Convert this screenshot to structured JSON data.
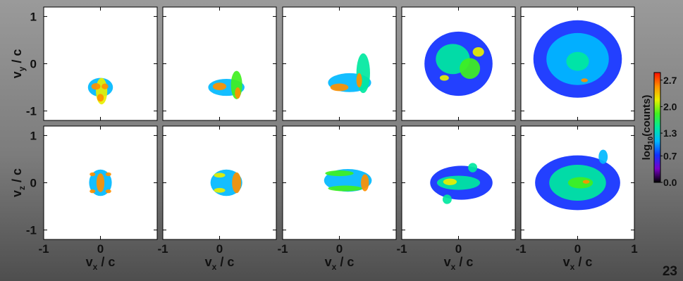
{
  "chart_data": {
    "type": "heatmap",
    "layout": {
      "rows": 2,
      "columns": 5
    },
    "rows": [
      {
        "ylabel_base": "v",
        "ylabel_sub": "y",
        "ylabel_tail": " / c",
        "yticks": [
          "1",
          "0",
          "-1"
        ],
        "ylim": [
          -1.2,
          1.2
        ]
      },
      {
        "ylabel_base": "v",
        "ylabel_sub": "z",
        "ylabel_tail": " / c",
        "yticks": [
          "1",
          "0",
          "-1"
        ],
        "ylim": [
          -1.2,
          1.2
        ]
      }
    ],
    "x_axis": {
      "label_base": "v",
      "label_sub": "x",
      "label_tail": " / c",
      "ticks": [
        "-1",
        "0",
        "1"
      ],
      "xlim": [
        -1,
        1
      ]
    },
    "colorbar": {
      "label_prefix": "log",
      "label_sub": "10",
      "label_suffix": "(counts)",
      "ticks": [
        "2.7",
        "2.0",
        "1.3",
        "0.7",
        "0.0"
      ],
      "tick_values": [
        2.7,
        2.0,
        1.3,
        0.7,
        0.0
      ],
      "range": [
        0.0,
        2.9
      ],
      "colors": [
        "#000000",
        "#7a00c8",
        "#1030ff",
        "#00b8ff",
        "#00e8a0",
        "#40f020",
        "#e8f000",
        "#ff9000",
        "#ff1000"
      ]
    },
    "panels": [
      {
        "row": 0,
        "col": 0,
        "blobs": [
          {
            "cx": 0.0,
            "cy": -0.5,
            "rx": 0.22,
            "ry": 0.2,
            "level": 1.2
          },
          {
            "cx": 0.02,
            "cy": -0.58,
            "rx": 0.1,
            "ry": 0.28,
            "level": 2.0
          },
          {
            "cx": -0.08,
            "cy": -0.48,
            "rx": 0.08,
            "ry": 0.07,
            "level": 2.6
          },
          {
            "cx": 0.08,
            "cy": -0.48,
            "rx": 0.06,
            "ry": 0.06,
            "level": 2.5
          },
          {
            "cx": 0.0,
            "cy": -0.72,
            "rx": 0.06,
            "ry": 0.08,
            "level": 2.7
          }
        ]
      },
      {
        "row": 0,
        "col": 1,
        "blobs": [
          {
            "cx": 0.12,
            "cy": -0.5,
            "rx": 0.32,
            "ry": 0.18,
            "level": 1.1
          },
          {
            "cx": 0.3,
            "cy": -0.45,
            "rx": 0.1,
            "ry": 0.3,
            "level": 1.7
          },
          {
            "cx": 0.0,
            "cy": -0.48,
            "rx": 0.12,
            "ry": 0.08,
            "level": 2.5
          },
          {
            "cx": 0.32,
            "cy": -0.62,
            "rx": 0.05,
            "ry": 0.12,
            "level": 2.6
          }
        ]
      },
      {
        "row": 0,
        "col": 2,
        "blobs": [
          {
            "cx": 0.18,
            "cy": -0.4,
            "rx": 0.38,
            "ry": 0.2,
            "level": 1.0
          },
          {
            "cx": 0.42,
            "cy": -0.2,
            "rx": 0.12,
            "ry": 0.42,
            "level": 1.5
          },
          {
            "cx": 0.0,
            "cy": -0.5,
            "rx": 0.16,
            "ry": 0.08,
            "level": 2.5
          },
          {
            "cx": 0.35,
            "cy": -0.35,
            "rx": 0.05,
            "ry": 0.15,
            "level": 2.6
          }
        ]
      },
      {
        "row": 0,
        "col": 3,
        "blobs": [
          {
            "cx": 0.0,
            "cy": 0.0,
            "rx": 0.6,
            "ry": 0.68,
            "level": 0.8
          },
          {
            "cx": -0.1,
            "cy": 0.1,
            "rx": 0.3,
            "ry": 0.32,
            "level": 1.4
          },
          {
            "cx": 0.2,
            "cy": -0.1,
            "rx": 0.18,
            "ry": 0.22,
            "level": 1.7
          },
          {
            "cx": 0.35,
            "cy": 0.25,
            "rx": 0.1,
            "ry": 0.1,
            "level": 2.2
          },
          {
            "cx": -0.25,
            "cy": -0.3,
            "rx": 0.08,
            "ry": 0.06,
            "level": 2.1
          }
        ]
      },
      {
        "row": 0,
        "col": 4,
        "blobs": [
          {
            "cx": 0.0,
            "cy": 0.1,
            "rx": 0.78,
            "ry": 0.82,
            "level": 0.7
          },
          {
            "cx": 0.0,
            "cy": 0.1,
            "rx": 0.55,
            "ry": 0.55,
            "level": 1.2
          },
          {
            "cx": 0.0,
            "cy": 0.05,
            "rx": 0.2,
            "ry": 0.2,
            "level": 1.6
          },
          {
            "cx": 0.12,
            "cy": -0.35,
            "rx": 0.06,
            "ry": 0.04,
            "level": 2.7
          }
        ]
      },
      {
        "row": 1,
        "col": 0,
        "blobs": [
          {
            "cx": 0.0,
            "cy": 0.0,
            "rx": 0.2,
            "ry": 0.28,
            "level": 1.2
          },
          {
            "cx": 0.0,
            "cy": 0.0,
            "rx": 0.07,
            "ry": 0.2,
            "level": 2.7
          },
          {
            "cx": -0.14,
            "cy": 0.18,
            "rx": 0.05,
            "ry": 0.04,
            "level": 2.4
          },
          {
            "cx": 0.14,
            "cy": 0.18,
            "rx": 0.05,
            "ry": 0.04,
            "level": 2.4
          },
          {
            "cx": -0.14,
            "cy": -0.18,
            "rx": 0.05,
            "ry": 0.04,
            "level": 2.4
          },
          {
            "cx": 0.14,
            "cy": -0.18,
            "rx": 0.05,
            "ry": 0.04,
            "level": 2.4
          }
        ]
      },
      {
        "row": 1,
        "col": 1,
        "blobs": [
          {
            "cx": 0.12,
            "cy": 0.0,
            "rx": 0.28,
            "ry": 0.28,
            "level": 1.2
          },
          {
            "cx": 0.3,
            "cy": 0.0,
            "rx": 0.08,
            "ry": 0.22,
            "level": 2.6
          },
          {
            "cx": 0.0,
            "cy": 0.16,
            "rx": 0.1,
            "ry": 0.05,
            "level": 2.0
          },
          {
            "cx": 0.0,
            "cy": -0.16,
            "rx": 0.1,
            "ry": 0.05,
            "level": 2.0
          }
        ]
      },
      {
        "row": 1,
        "col": 2,
        "blobs": [
          {
            "cx": 0.15,
            "cy": 0.05,
            "rx": 0.42,
            "ry": 0.24,
            "level": 1.1
          },
          {
            "cx": 0.0,
            "cy": 0.2,
            "rx": 0.25,
            "ry": 0.06,
            "level": 1.8
          },
          {
            "cx": 0.1,
            "cy": -0.12,
            "rx": 0.3,
            "ry": 0.06,
            "level": 1.8
          },
          {
            "cx": 0.45,
            "cy": 0.0,
            "rx": 0.07,
            "ry": 0.18,
            "level": 2.6
          }
        ]
      },
      {
        "row": 1,
        "col": 3,
        "blobs": [
          {
            "cx": 0.05,
            "cy": 0.0,
            "rx": 0.55,
            "ry": 0.36,
            "level": 0.9
          },
          {
            "cx": 0.0,
            "cy": 0.0,
            "rx": 0.38,
            "ry": 0.15,
            "level": 1.5
          },
          {
            "cx": -0.15,
            "cy": 0.02,
            "rx": 0.12,
            "ry": 0.07,
            "level": 2.2
          },
          {
            "cx": -0.2,
            "cy": -0.35,
            "rx": 0.08,
            "ry": 0.1,
            "level": 1.3
          },
          {
            "cx": 0.25,
            "cy": 0.32,
            "rx": 0.08,
            "ry": 0.1,
            "level": 1.3
          }
        ]
      },
      {
        "row": 1,
        "col": 4,
        "blobs": [
          {
            "cx": 0.0,
            "cy": 0.0,
            "rx": 0.75,
            "ry": 0.58,
            "level": 0.8
          },
          {
            "cx": 0.0,
            "cy": 0.0,
            "rx": 0.5,
            "ry": 0.38,
            "level": 1.3
          },
          {
            "cx": 0.05,
            "cy": 0.0,
            "rx": 0.22,
            "ry": 0.12,
            "level": 1.8
          },
          {
            "cx": 0.15,
            "cy": 0.02,
            "rx": 0.06,
            "ry": 0.04,
            "level": 2.5
          },
          {
            "cx": 0.45,
            "cy": 0.55,
            "rx": 0.08,
            "ry": 0.15,
            "level": 1.1
          }
        ]
      }
    ]
  },
  "page_number": "23"
}
